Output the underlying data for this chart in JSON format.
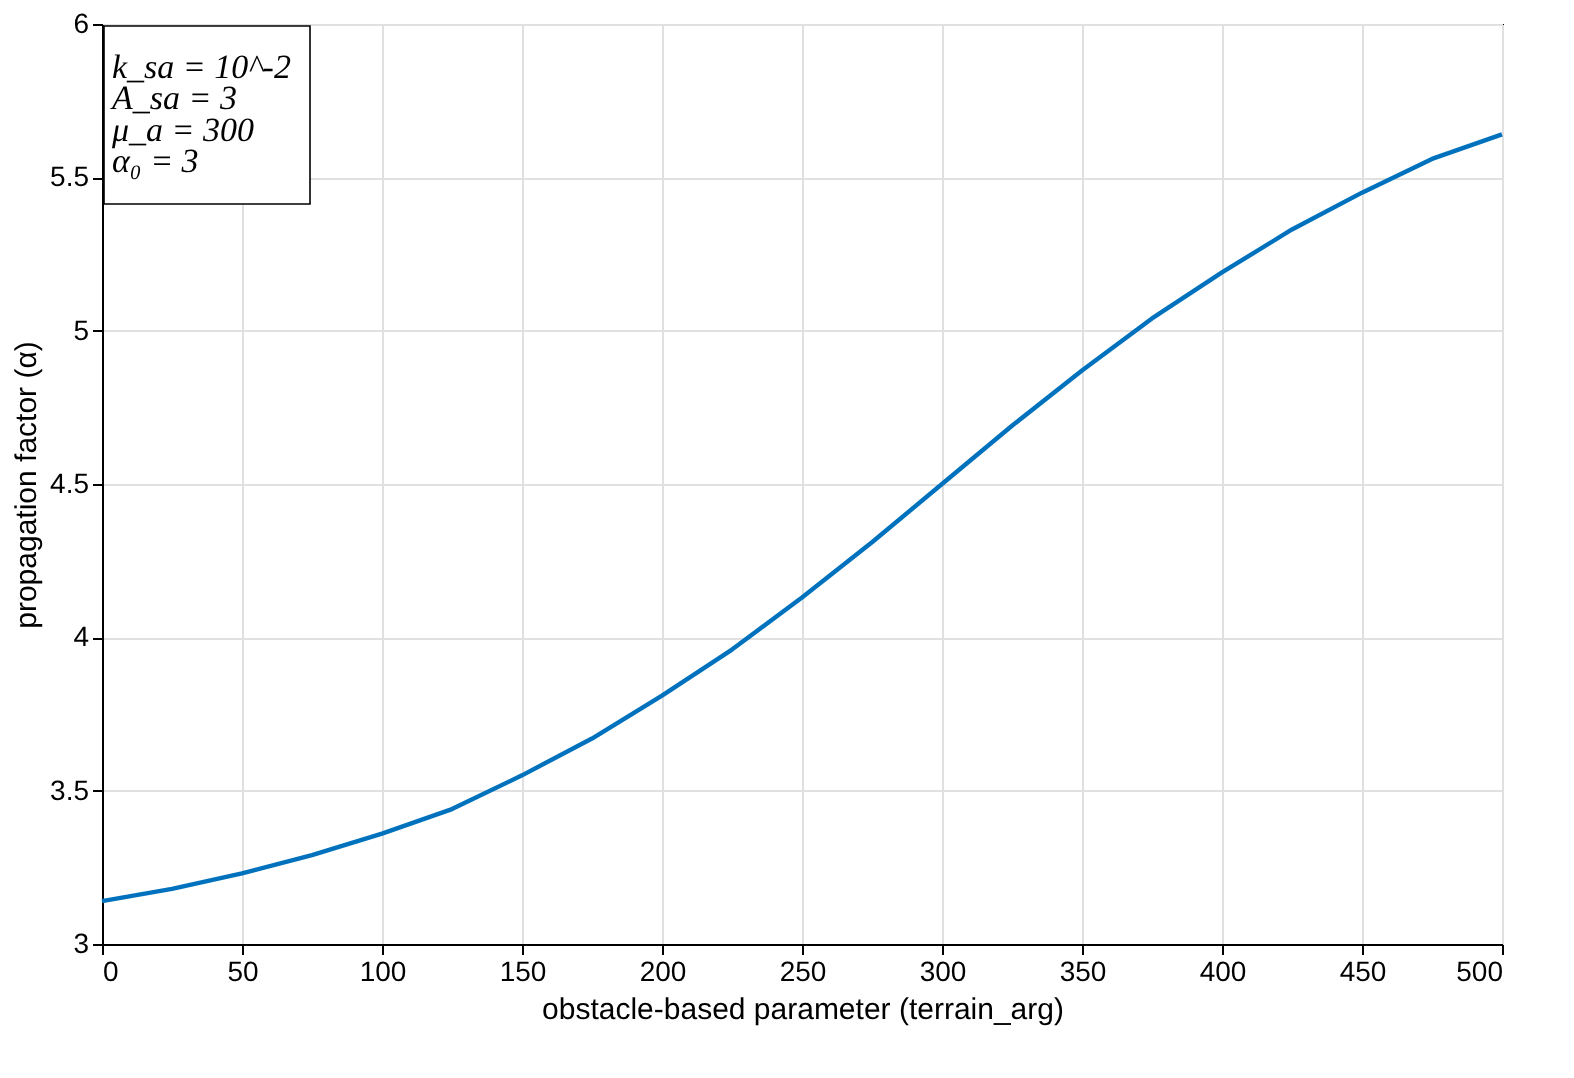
{
  "chart_data": {
    "type": "line",
    "xlabel": "obstacle-based parameter (terrain_arg)",
    "ylabel": "propagation factor (α)",
    "x": [
      0,
      25,
      50,
      75,
      100,
      125,
      150,
      175,
      200,
      225,
      250,
      275,
      300,
      325,
      350,
      375,
      400,
      425,
      450,
      475,
      500
    ],
    "series": [
      {
        "color": "#0072bd",
        "values": [
          3.14,
          3.18,
          3.23,
          3.29,
          3.36,
          3.44,
          3.55,
          3.67,
          3.81,
          3.96,
          4.13,
          4.31,
          4.5,
          4.69,
          4.87,
          5.04,
          5.19,
          5.33,
          5.45,
          5.56,
          5.64
        ]
      }
    ],
    "xlim": [
      0,
      500
    ],
    "xticks": [
      0,
      50,
      100,
      150,
      200,
      250,
      300,
      350,
      400,
      450,
      500
    ],
    "ylim": [
      3,
      6
    ],
    "yticks": [
      3,
      3.5,
      4,
      4.5,
      5,
      5.5,
      6
    ],
    "grid": true,
    "marker": "none",
    "line_style": "solid",
    "annotations": [
      "k_sa = 10^-2",
      "A_sa = 3",
      "μ_a = 300",
      "α₀ = 3"
    ]
  }
}
